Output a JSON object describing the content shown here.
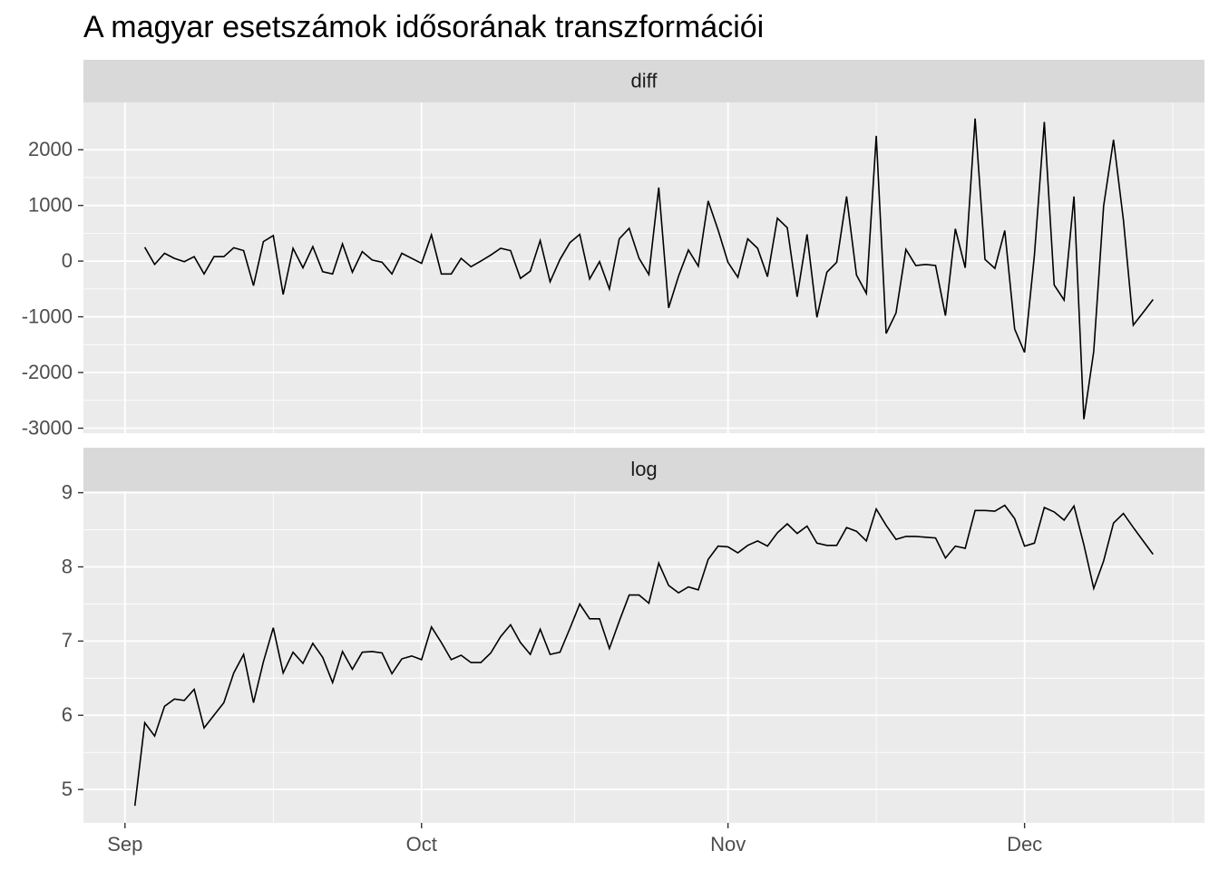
{
  "chart_data": {
    "type": "line",
    "title": "A magyar esetszámok idősorának transzformációi",
    "x": [
      1,
      2,
      3,
      4,
      5,
      6,
      7,
      8,
      9,
      10,
      11,
      12,
      13,
      14,
      15,
      16,
      17,
      18,
      19,
      20,
      21,
      22,
      23,
      24,
      25,
      26,
      27,
      28,
      29,
      30,
      31,
      32,
      33,
      34,
      35,
      36,
      37,
      38,
      39,
      40,
      41,
      42,
      43,
      44,
      45,
      46,
      47,
      48,
      49,
      50,
      51,
      52,
      53,
      54,
      55,
      56,
      57,
      58,
      59,
      60,
      61,
      62,
      63,
      64,
      65,
      66,
      67,
      68,
      69,
      70,
      71,
      72,
      73,
      74,
      75,
      76,
      77,
      78,
      79,
      80,
      81,
      82,
      83,
      84,
      85,
      86,
      87,
      88,
      89,
      90,
      91,
      92,
      93,
      94,
      95,
      96,
      97,
      98,
      99,
      100,
      101,
      102,
      103,
      104
    ],
    "xlim": [
      -4.2,
      109.2
    ],
    "xticks": [
      {
        "value": 0,
        "label": "Sep"
      },
      {
        "value": 30,
        "label": "Oct"
      },
      {
        "value": 61,
        "label": "Nov"
      },
      {
        "value": 91,
        "label": "Dec"
      }
    ],
    "grid": true,
    "series": [
      {
        "name": "diff",
        "color": "#000000",
        "ylim": [
          -3090,
          2850
        ],
        "yticks": [
          -3000,
          -2000,
          -1000,
          0,
          1000,
          2000
        ],
        "values": [
          null,
          250,
          -60,
          140,
          50,
          -10,
          80,
          -230,
          80,
          80,
          240,
          190,
          -440,
          350,
          460,
          -600,
          230,
          -120,
          260,
          -190,
          -230,
          310,
          -200,
          170,
          20,
          -20,
          -230,
          140,
          50,
          -40,
          470,
          -230,
          -230,
          50,
          -100,
          0,
          110,
          230,
          190,
          -310,
          -180,
          370,
          -370,
          30,
          330,
          480,
          -320,
          -10,
          -500,
          400,
          590,
          50,
          -240,
          1320,
          -840,
          -270,
          200,
          -90,
          1080,
          560,
          -20,
          -290,
          400,
          230,
          -280,
          770,
          600,
          -640,
          480,
          -1010,
          -200,
          -20,
          1160,
          -250,
          -580,
          2250,
          -1300,
          -930,
          210,
          -80,
          -60,
          -80,
          -980,
          580,
          -120,
          2560,
          30,
          -130,
          550,
          -1220,
          -1640,
          110,
          2500,
          -430,
          -700,
          1160,
          -2840,
          -1620,
          990,
          2180,
          740,
          -1150,
          -920,
          -690
        ]
      },
      {
        "name": "log",
        "color": "#000000",
        "ylim": [
          4.55,
          9.02
        ],
        "yticks": [
          5,
          6,
          7,
          8,
          9
        ],
        "values": [
          4.78,
          5.9,
          5.72,
          6.12,
          6.22,
          6.2,
          6.35,
          5.83,
          6.0,
          6.17,
          6.57,
          6.82,
          6.17,
          6.72,
          7.18,
          6.57,
          6.85,
          6.7,
          6.97,
          6.78,
          6.44,
          6.86,
          6.62,
          6.85,
          6.86,
          6.84,
          6.56,
          6.76,
          6.8,
          6.75,
          7.19,
          6.98,
          6.75,
          6.81,
          6.71,
          6.71,
          6.84,
          7.06,
          7.22,
          6.98,
          6.82,
          7.16,
          6.82,
          6.85,
          7.17,
          7.5,
          7.3,
          7.3,
          6.9,
          7.27,
          7.62,
          7.62,
          7.51,
          8.05,
          7.75,
          7.65,
          7.73,
          7.69,
          8.1,
          8.28,
          8.27,
          8.19,
          8.29,
          8.35,
          8.28,
          8.46,
          8.58,
          8.45,
          8.55,
          8.32,
          8.29,
          8.29,
          8.53,
          8.48,
          8.35,
          8.78,
          8.56,
          8.37,
          8.41,
          8.41,
          8.4,
          8.39,
          8.12,
          8.28,
          8.25,
          8.76,
          8.76,
          8.75,
          8.83,
          8.65,
          8.28,
          8.32,
          8.8,
          8.74,
          8.63,
          8.82,
          8.3,
          7.71,
          8.08,
          8.59,
          8.72,
          8.53,
          8.35,
          8.17
        ]
      }
    ]
  }
}
